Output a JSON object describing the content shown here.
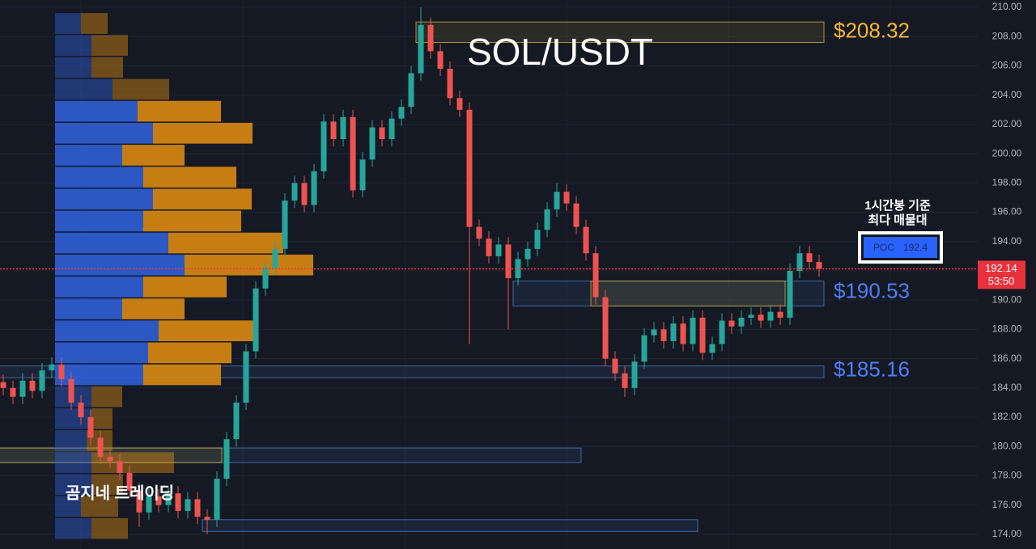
{
  "chart_data": {
    "type": "candlestick",
    "title": "SOL/USDT",
    "watermark": "곰지네 트레이딩",
    "note": [
      "1시간봉 기준",
      "최다 매물대"
    ],
    "poc": {
      "label": "POC",
      "value": 192.4
    },
    "last_price": 192.14,
    "countdown": "53:50",
    "ylim": [
      173,
      210.5
    ],
    "yticks": [
      {
        "value": 174,
        "label": "174.00"
      },
      {
        "value": 176,
        "label": "176.00"
      },
      {
        "value": 178,
        "label": "178.00"
      },
      {
        "value": 180,
        "label": "180.00"
      },
      {
        "value": 182,
        "label": "182.00"
      },
      {
        "value": 184,
        "label": "184.00"
      },
      {
        "value": 186,
        "label": "186.00"
      },
      {
        "value": 188,
        "label": "188.00"
      },
      {
        "value": 190,
        "label": "190.00"
      },
      {
        "value": 192,
        "label": "192.00"
      },
      {
        "value": 194,
        "label": "194.00"
      },
      {
        "value": 196,
        "label": "196.00"
      },
      {
        "value": 198,
        "label": "198.00"
      },
      {
        "value": 200,
        "label": "200.00"
      },
      {
        "value": 202,
        "label": "202.00"
      },
      {
        "value": 204,
        "label": "204.00"
      },
      {
        "value": 206,
        "label": "206.00"
      },
      {
        "value": 208,
        "label": "208.00"
      },
      {
        "value": 210,
        "label": "210.00"
      }
    ],
    "grid": true,
    "up_color": "#26a69a",
    "down_color": "#ef5350",
    "open": [
      184.4,
      184.0,
      183.4,
      184.5,
      183.8,
      185.2,
      185.6,
      184.6,
      183.0,
      182.0,
      180.6,
      179.3,
      179.0,
      178.2,
      177.0,
      175.5,
      176.6,
      176.0,
      176.8,
      175.6,
      176.4,
      175.2,
      175.0,
      177.8,
      180.5,
      183.0,
      186.5,
      190.8,
      192.2,
      193.5,
      196.8,
      198.0,
      196.5,
      198.8,
      202.2,
      201.0,
      202.5,
      197.5,
      199.6,
      201.8,
      201.0,
      202.4,
      203.2,
      205.5,
      208.8,
      207.0,
      205.8,
      203.8,
      203.0,
      195.0,
      194.2,
      193.0,
      193.8,
      191.5,
      192.8,
      193.5,
      194.8,
      196.2,
      197.4,
      196.6,
      195.0,
      193.2,
      190.2,
      186.0,
      185.0,
      184.0,
      185.8,
      187.6,
      188.0,
      187.2,
      188.4,
      187.0,
      188.8,
      186.4,
      187.0,
      188.6,
      188.2,
      188.8,
      189.0,
      188.6,
      189.2,
      188.8,
      192.0,
      193.2,
      192.6
    ],
    "high": [
      184.9,
      184.5,
      185.0,
      185.0,
      185.7,
      186.1,
      186.1,
      185.1,
      183.5,
      182.5,
      181.1,
      179.8,
      179.5,
      178.7,
      177.5,
      177.1,
      177.1,
      177.3,
      177.3,
      176.9,
      176.9,
      175.7,
      178.3,
      181.0,
      183.5,
      187.0,
      191.3,
      192.7,
      194.0,
      197.3,
      198.5,
      198.5,
      199.3,
      202.7,
      202.7,
      203.0,
      203.0,
      200.1,
      202.3,
      202.3,
      202.9,
      203.7,
      206.0,
      210.0,
      209.3,
      207.5,
      206.3,
      204.3,
      203.5,
      195.5,
      194.7,
      194.3,
      194.3,
      193.3,
      194.0,
      195.3,
      196.7,
      198.0,
      197.9,
      197.1,
      195.5,
      193.7,
      190.7,
      186.5,
      185.5,
      186.3,
      188.1,
      188.5,
      188.5,
      188.9,
      188.9,
      189.3,
      189.3,
      187.5,
      189.1,
      189.1,
      189.3,
      189.5,
      189.5,
      189.7,
      189.7,
      192.5,
      193.7,
      193.7,
      193.1
    ],
    "low": [
      183.5,
      182.9,
      182.9,
      183.3,
      183.3,
      184.7,
      184.1,
      182.5,
      181.5,
      180.1,
      178.8,
      178.5,
      177.7,
      176.5,
      174.5,
      175.0,
      175.5,
      175.5,
      175.1,
      175.1,
      174.7,
      174.0,
      174.5,
      177.3,
      180.0,
      182.5,
      186.0,
      190.3,
      191.7,
      193.0,
      196.3,
      196.0,
      196.0,
      198.3,
      200.5,
      200.5,
      197.0,
      197.0,
      199.1,
      200.5,
      200.5,
      201.9,
      202.7,
      205.0,
      206.5,
      205.3,
      203.3,
      202.5,
      187.0,
      193.7,
      192.5,
      192.5,
      188.0,
      191.0,
      192.3,
      193.0,
      194.3,
      195.7,
      196.1,
      194.5,
      192.7,
      189.7,
      185.5,
      184.5,
      183.4,
      183.5,
      185.3,
      187.1,
      186.7,
      186.7,
      186.5,
      186.5,
      185.9,
      185.9,
      186.5,
      187.7,
      187.7,
      188.3,
      188.1,
      188.1,
      188.3,
      188.3,
      191.5,
      192.1,
      191.6
    ],
    "close": [
      184.0,
      183.4,
      184.5,
      183.8,
      185.2,
      185.6,
      184.6,
      183.0,
      182.0,
      180.6,
      179.3,
      179.0,
      178.2,
      177.0,
      175.5,
      176.6,
      176.0,
      176.8,
      175.6,
      176.4,
      175.2,
      175.0,
      177.8,
      180.5,
      183.0,
      186.5,
      190.8,
      192.2,
      193.5,
      196.8,
      198.0,
      196.5,
      198.8,
      202.2,
      201.0,
      202.5,
      197.5,
      199.6,
      201.8,
      201.0,
      202.4,
      203.2,
      205.5,
      208.8,
      207.0,
      205.8,
      203.8,
      203.0,
      195.0,
      194.2,
      193.0,
      193.8,
      191.5,
      192.8,
      193.5,
      194.8,
      196.2,
      197.4,
      196.6,
      195.0,
      193.2,
      190.2,
      186.0,
      185.0,
      184.0,
      185.8,
      187.6,
      188.0,
      187.2,
      188.4,
      187.0,
      188.8,
      186.4,
      187.0,
      188.6,
      188.2,
      188.8,
      189.0,
      188.6,
      189.2,
      188.8,
      192.0,
      193.2,
      192.6,
      192.14
    ],
    "profile": {
      "bins": [
        208.9,
        207.4,
        205.9,
        204.4,
        202.9,
        201.4,
        199.9,
        198.4,
        196.9,
        195.4,
        193.9,
        192.4,
        190.9,
        189.4,
        187.9,
        186.4,
        184.9,
        183.4,
        181.9,
        180.4,
        178.9,
        177.4,
        175.9,
        174.4
      ],
      "buy": [
        32,
        45,
        45,
        71,
        102,
        121,
        83,
        109,
        121,
        109,
        140,
        160,
        109,
        83,
        128,
        115,
        109,
        45,
        45,
        39,
        45,
        45,
        32,
        45
      ],
      "sell": [
        33,
        45,
        39,
        70,
        103,
        123,
        77,
        115,
        122,
        121,
        142,
        159,
        103,
        77,
        121,
        103,
        96,
        38,
        26,
        32,
        102,
        39,
        46,
        45
      ],
      "buy_color": "#2f5fd6",
      "sell_color": "#d98a12"
    },
    "zones": [
      {
        "low": 207.6,
        "high": 209.0,
        "start": 43,
        "end": 84,
        "color": "#c9b23a"
      },
      {
        "low": 189.6,
        "high": 191.3,
        "start": 53,
        "end": 84,
        "color": "#4a7cc0"
      },
      {
        "low": 189.6,
        "high": 191.3,
        "start": 61,
        "end": 80,
        "color": "#c9b23a"
      },
      {
        "low": 184.7,
        "high": 185.5,
        "start": 0,
        "end": 84,
        "color": "#4a7cc0"
      },
      {
        "low": 178.9,
        "high": 179.9,
        "start": 0,
        "end": 59,
        "color": "#4a7cc0"
      },
      {
        "low": 178.9,
        "high": 179.9,
        "start": 0,
        "end": 22,
        "color": "#c9b23a"
      },
      {
        "low": 174.2,
        "high": 175.0,
        "start": 21,
        "end": 71,
        "color": "#4a7cc0"
      }
    ],
    "levels": [
      {
        "value": 208.32,
        "label": "$208.32",
        "color": "#f5b82e"
      },
      {
        "value": 190.53,
        "label": "$190.53",
        "color": "#4d7ff2"
      },
      {
        "value": 185.16,
        "label": "$185.16",
        "color": "#4d7ff2"
      }
    ]
  }
}
